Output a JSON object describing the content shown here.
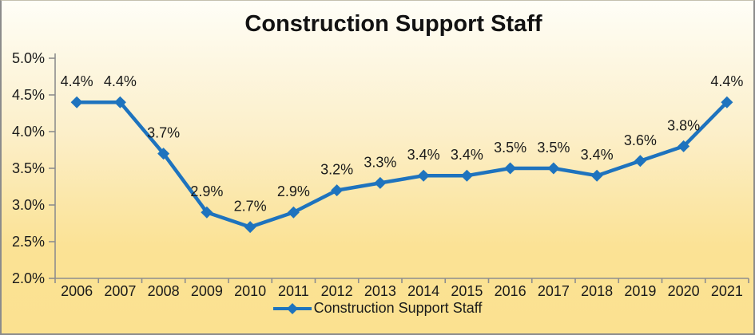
{
  "chart_data": {
    "type": "line",
    "title": "Construction Support Staff",
    "categories": [
      "2006",
      "2007",
      "2008",
      "2009",
      "2010",
      "2011",
      "2012",
      "2013",
      "2014",
      "2015",
      "2016",
      "2017",
      "2018",
      "2019",
      "2020",
      "2021"
    ],
    "series": [
      {
        "name": "Construction Support Staff",
        "values": [
          4.4,
          4.4,
          3.7,
          2.9,
          2.7,
          2.9,
          3.2,
          3.3,
          3.4,
          3.4,
          3.5,
          3.5,
          3.4,
          3.6,
          3.8,
          4.4
        ]
      }
    ],
    "data_labels": [
      "4.4%",
      "4.4%",
      "3.7%",
      "2.9%",
      "2.7%",
      "2.9%",
      "3.2%",
      "3.3%",
      "3.4%",
      "3.4%",
      "3.5%",
      "3.5%",
      "3.4%",
      "3.6%",
      "3.8%",
      "4.4%"
    ],
    "y_axis": {
      "min": 2.0,
      "max": 5.0,
      "step": 0.5,
      "tick_labels_top_to_bottom": [
        "5.0%",
        "4.5%",
        "4.0%",
        "3.5%",
        "3.0%",
        "2.5%",
        "2.0%"
      ]
    },
    "x_axis": {
      "tick_labels": [
        "2006",
        "2007",
        "2008",
        "2009",
        "2010",
        "2011",
        "2012",
        "2013",
        "2014",
        "2015",
        "2016",
        "2017",
        "2018",
        "2019",
        "2020",
        "2021"
      ]
    },
    "legend": {
      "position": "bottom",
      "label": "Construction Support Staff"
    },
    "grid": false,
    "colors": {
      "line": "#1e73be",
      "axis": "#8e8e8e",
      "text": "#1a1a1a",
      "background_top": "#fffef7",
      "background_bottom": "#fbe190"
    }
  }
}
